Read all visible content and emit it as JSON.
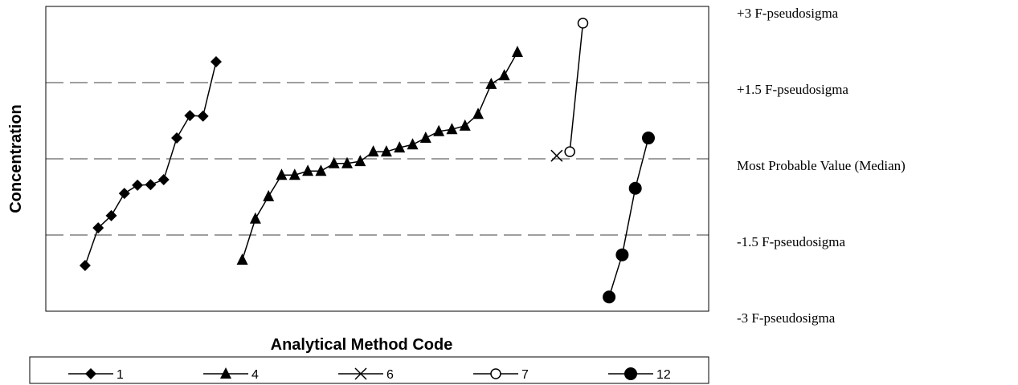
{
  "chart_data": {
    "type": "line",
    "x_label": "Analytical  Method Code",
    "y_label": "Concentration",
    "xlim": [
      0,
      50.6
    ],
    "ylim": [
      -3,
      3
    ],
    "yticks": [
      {
        "value": -3,
        "label": "-3 F-pseudosigma"
      },
      {
        "value": -1.5,
        "label": "-1.5 F-pseudosigma"
      },
      {
        "value": 0,
        "label": "Most Probable Value (Median)"
      },
      {
        "value": 1.5,
        "label": "+1.5 F-pseudosigma"
      },
      {
        "value": 3,
        "label": "+3 F-pseudosigma"
      }
    ],
    "grid": true,
    "series": [
      {
        "name": "1",
        "color": "#000000",
        "marker": "diamond",
        "x": [
          3,
          4,
          5,
          6,
          7,
          8,
          9,
          10,
          11,
          12,
          13
        ],
        "values": [
          -2.1,
          -1.36,
          -1.12,
          -0.68,
          -0.52,
          -0.51,
          -0.41,
          0.41,
          0.85,
          0.84,
          1.91
        ]
      },
      {
        "name": "4",
        "color": "#000000",
        "marker": "triangle",
        "x": [
          15,
          16,
          17,
          18,
          19,
          20,
          21,
          22,
          23,
          24,
          25,
          26,
          27,
          28,
          29,
          30,
          31,
          32,
          33,
          34,
          35,
          36
        ],
        "values": [
          -1.99,
          -1.18,
          -0.74,
          -0.32,
          -0.32,
          -0.24,
          -0.24,
          -0.09,
          -0.09,
          -0.05,
          0.14,
          0.14,
          0.22,
          0.28,
          0.41,
          0.54,
          0.58,
          0.65,
          0.88,
          1.47,
          1.64,
          2.1
        ]
      },
      {
        "name": "6",
        "color": "#000000",
        "marker": "x",
        "x": [
          39
        ],
        "values": [
          0.06
        ]
      },
      {
        "name": "7",
        "color": "#000000",
        "marker": "open-circle",
        "x": [
          40,
          41
        ],
        "values": [
          0.14,
          2.67
        ]
      },
      {
        "name": "12",
        "color": "#000000",
        "marker": "filled-circle",
        "x": [
          43,
          44,
          45,
          46
        ],
        "values": [
          -2.72,
          -1.89,
          -0.58,
          0.41
        ]
      }
    ]
  }
}
